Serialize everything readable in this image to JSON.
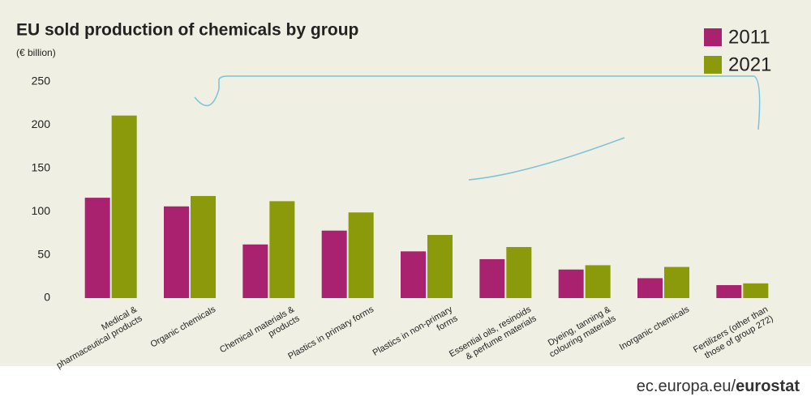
{
  "chart_data": {
    "type": "bar",
    "title": "EU sold production of chemicals by group",
    "subtitle": "(€ billion)",
    "categories": [
      "Medical & pharmaceutical products",
      "Organic chemicals",
      "Chemical materials & products",
      "Plastics in primary forms",
      "Plastics in non-primary forms",
      "Essential oils, resinoids & perfume materials",
      "Dyeing, tanning & colouring materials",
      "Inorganic chemicals",
      "Fertilizers (other than those of group 272)"
    ],
    "series": [
      {
        "name": "2011",
        "color": "#a8226f",
        "values": [
          116,
          106,
          62,
          78,
          54,
          45,
          33,
          23,
          15
        ]
      },
      {
        "name": "2021",
        "color": "#8b9a0a",
        "values": [
          211,
          118,
          112,
          99,
          73,
          59,
          38,
          36,
          17
        ]
      }
    ],
    "ylim": [
      0,
      250
    ],
    "yticks": [
      0,
      50,
      100,
      150,
      200,
      250
    ],
    "grid": false,
    "legend": "top-right",
    "source_site": "ec.europa.eu/",
    "source_brand": "eurostat"
  }
}
